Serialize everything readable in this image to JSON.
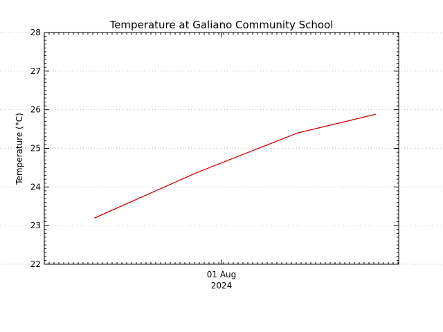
{
  "chart_data": {
    "type": "line",
    "title": "Temperature at Galiano Community School",
    "xlabel": "",
    "ylabel": "Temperature (°C)",
    "ylim": [
      22,
      28
    ],
    "yticks": [
      "22",
      "23",
      "24",
      "25",
      "26",
      "27",
      "28"
    ],
    "x_tick_labels": [
      {
        "line1": "01 Aug",
        "line2": "2024"
      }
    ],
    "grid": true,
    "series": [
      {
        "color": "#cc0000",
        "values": [
          23.2,
          24.37,
          25.4,
          25.88
        ]
      }
    ]
  }
}
